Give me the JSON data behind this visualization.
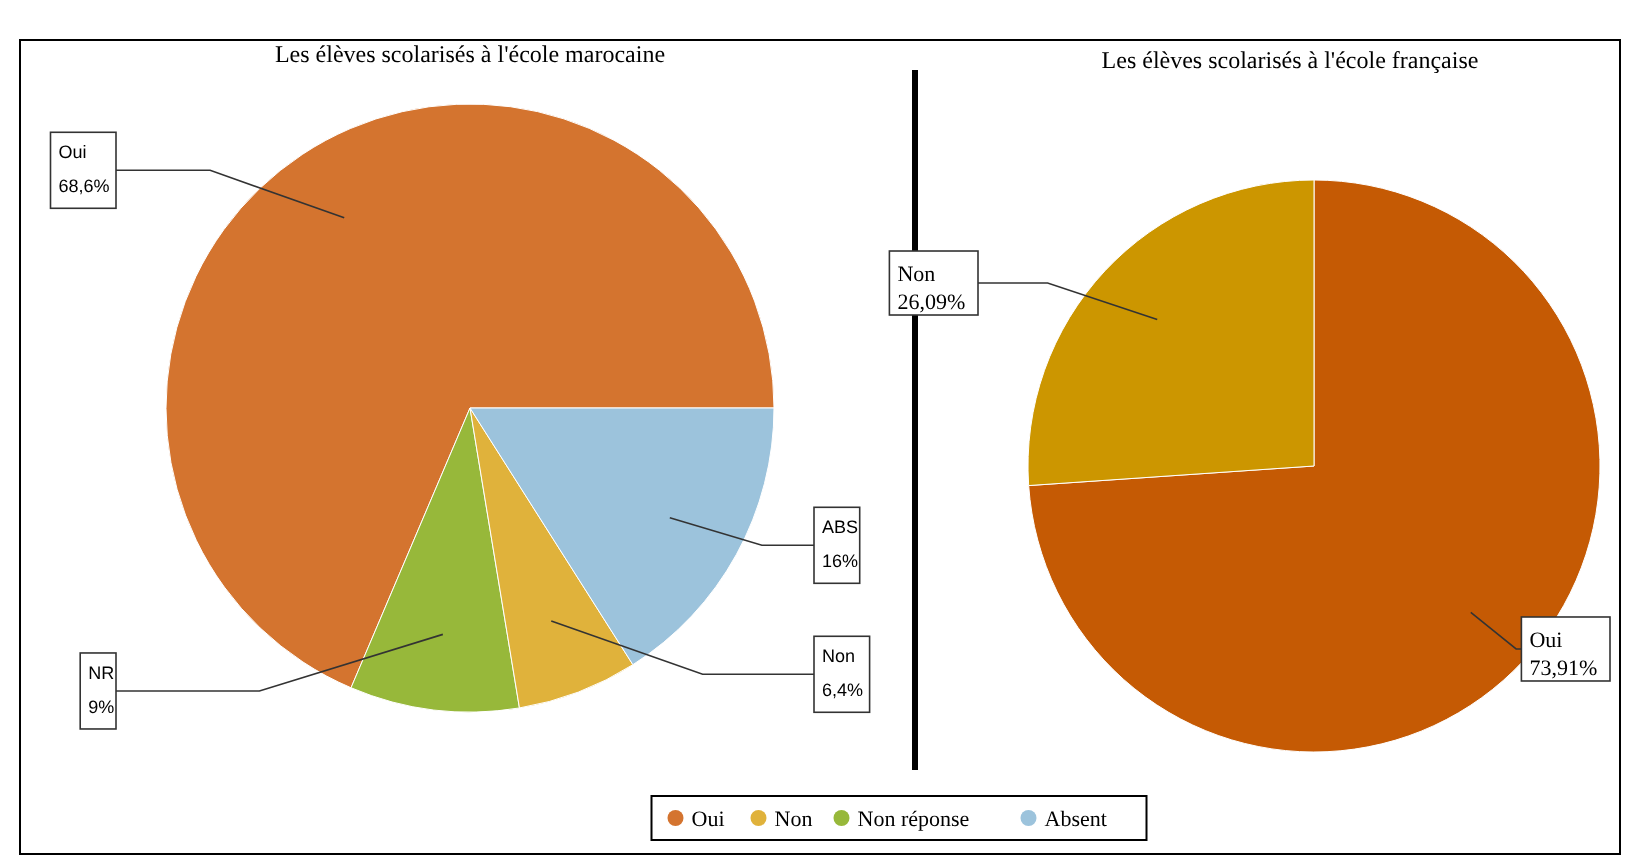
{
  "chart_data": [
    {
      "type": "pie",
      "title": "Les élèves scolarisés à l'école marocaine",
      "categories": [
        "Oui",
        "Non",
        "Non réponse",
        "Absent"
      ],
      "values": [
        68.6,
        6.4,
        9,
        16
      ],
      "colors": [
        "#d4742f",
        "#e0b23b",
        "#97b83a",
        "#9cc3dc"
      ],
      "value_labels": [
        "Oui\n68,6%",
        "Non\n6,4%",
        "NR\n9%",
        "ABS\n16%"
      ],
      "legend": "bottom"
    },
    {
      "type": "pie",
      "title": "Les élèves scolarisés à l'école française",
      "categories": [
        "Oui",
        "Non"
      ],
      "values": [
        73.91,
        26.09
      ],
      "colors": [
        "#c55a04",
        "#cc9600"
      ],
      "value_labels": [
        "73,91%",
        "26,09%"
      ]
    }
  ]
}
